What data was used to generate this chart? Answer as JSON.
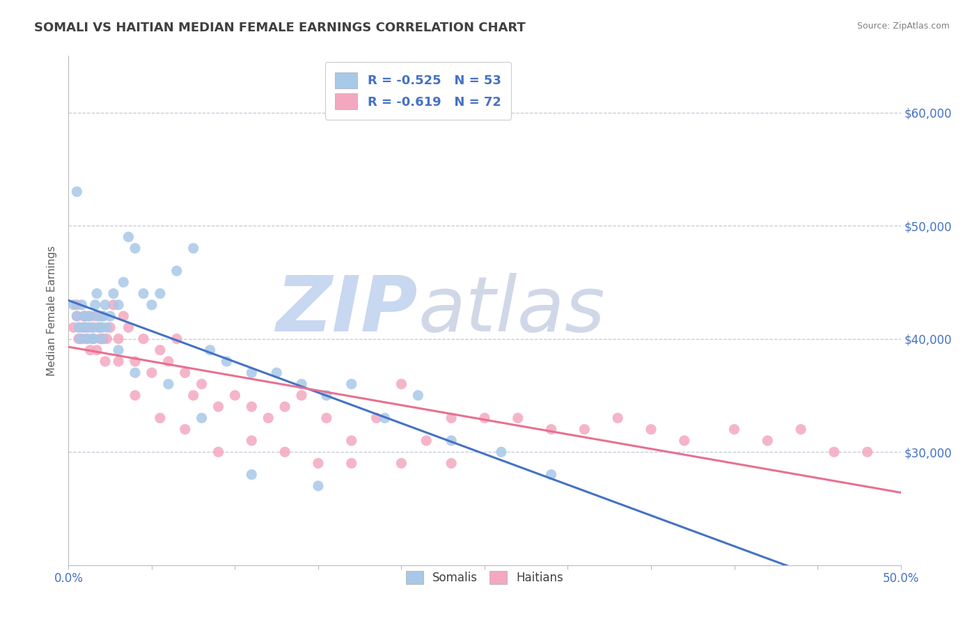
{
  "title": "SOMALI VS HAITIAN MEDIAN FEMALE EARNINGS CORRELATION CHART",
  "source_text": "Source: ZipAtlas.com",
  "ylabel": "Median Female Earnings",
  "xlim": [
    0.0,
    0.5
  ],
  "ylim": [
    20000,
    65000
  ],
  "yticks": [
    30000,
    40000,
    50000,
    60000
  ],
  "ytick_labels": [
    "$30,000",
    "$40,000",
    "$50,000",
    "$60,000"
  ],
  "xticks": [
    0.0,
    0.05,
    0.1,
    0.15,
    0.2,
    0.25,
    0.3,
    0.35,
    0.4,
    0.45,
    0.5
  ],
  "xtick_labels": [
    "0.0%",
    "",
    "",
    "",
    "",
    "",
    "",
    "",
    "",
    "",
    "50.0%"
  ],
  "somali_R": -0.525,
  "somali_N": 53,
  "haitian_R": -0.619,
  "haitian_N": 72,
  "somali_color": "#a8c8e8",
  "haitian_color": "#f4a8c0",
  "somali_line_color": "#4472c4",
  "haitian_line_color": "#e87090",
  "legend_text_color": "#4472c4",
  "background_color": "#ffffff",
  "grid_color": "#c0c8d8",
  "title_color": "#404040",
  "ylabel_color": "#606060",
  "ytick_label_color": "#4472c4",
  "xtick_label_color": "#4472c4",
  "watermark_zip_color": "#c8d8f0",
  "watermark_atlas_color": "#d0d8e8",
  "source_color": "#808080",
  "somali_x": [
    0.003,
    0.005,
    0.006,
    0.007,
    0.008,
    0.009,
    0.01,
    0.011,
    0.012,
    0.013,
    0.014,
    0.015,
    0.016,
    0.017,
    0.018,
    0.019,
    0.02,
    0.021,
    0.022,
    0.023,
    0.025,
    0.027,
    0.03,
    0.033,
    0.036,
    0.04,
    0.045,
    0.05,
    0.055,
    0.065,
    0.075,
    0.085,
    0.095,
    0.11,
    0.125,
    0.14,
    0.155,
    0.17,
    0.19,
    0.21,
    0.23,
    0.26,
    0.29,
    0.005,
    0.01,
    0.015,
    0.02,
    0.03,
    0.04,
    0.06,
    0.08,
    0.11,
    0.15
  ],
  "somali_y": [
    43000,
    42000,
    41000,
    40000,
    43000,
    41000,
    42000,
    40000,
    41000,
    42000,
    40000,
    41000,
    43000,
    44000,
    42000,
    41000,
    40000,
    42000,
    43000,
    41000,
    42000,
    44000,
    43000,
    45000,
    49000,
    48000,
    44000,
    43000,
    44000,
    46000,
    48000,
    39000,
    38000,
    37000,
    37000,
    36000,
    35000,
    36000,
    33000,
    35000,
    31000,
    30000,
    28000,
    53000,
    42000,
    40000,
    41000,
    39000,
    37000,
    36000,
    33000,
    28000,
    27000
  ],
  "haitian_x": [
    0.003,
    0.005,
    0.006,
    0.007,
    0.008,
    0.009,
    0.01,
    0.011,
    0.012,
    0.013,
    0.014,
    0.015,
    0.016,
    0.017,
    0.018,
    0.019,
    0.02,
    0.021,
    0.022,
    0.023,
    0.025,
    0.027,
    0.03,
    0.033,
    0.036,
    0.04,
    0.045,
    0.05,
    0.055,
    0.06,
    0.065,
    0.07,
    0.075,
    0.08,
    0.09,
    0.1,
    0.11,
    0.12,
    0.13,
    0.14,
    0.155,
    0.17,
    0.185,
    0.2,
    0.215,
    0.23,
    0.25,
    0.27,
    0.29,
    0.31,
    0.33,
    0.35,
    0.37,
    0.4,
    0.42,
    0.44,
    0.46,
    0.48,
    0.005,
    0.01,
    0.02,
    0.03,
    0.04,
    0.055,
    0.07,
    0.09,
    0.11,
    0.13,
    0.15,
    0.17,
    0.2,
    0.23
  ],
  "haitian_y": [
    41000,
    42000,
    40000,
    41000,
    40000,
    42000,
    41000,
    40000,
    42000,
    39000,
    41000,
    40000,
    42000,
    39000,
    41000,
    40000,
    42000,
    40000,
    38000,
    40000,
    41000,
    43000,
    40000,
    42000,
    41000,
    38000,
    40000,
    37000,
    39000,
    38000,
    40000,
    37000,
    35000,
    36000,
    34000,
    35000,
    34000,
    33000,
    34000,
    35000,
    33000,
    31000,
    33000,
    36000,
    31000,
    33000,
    33000,
    33000,
    32000,
    32000,
    33000,
    32000,
    31000,
    32000,
    31000,
    32000,
    30000,
    30000,
    43000,
    41000,
    40000,
    38000,
    35000,
    33000,
    32000,
    30000,
    31000,
    30000,
    29000,
    29000,
    29000,
    29000
  ]
}
